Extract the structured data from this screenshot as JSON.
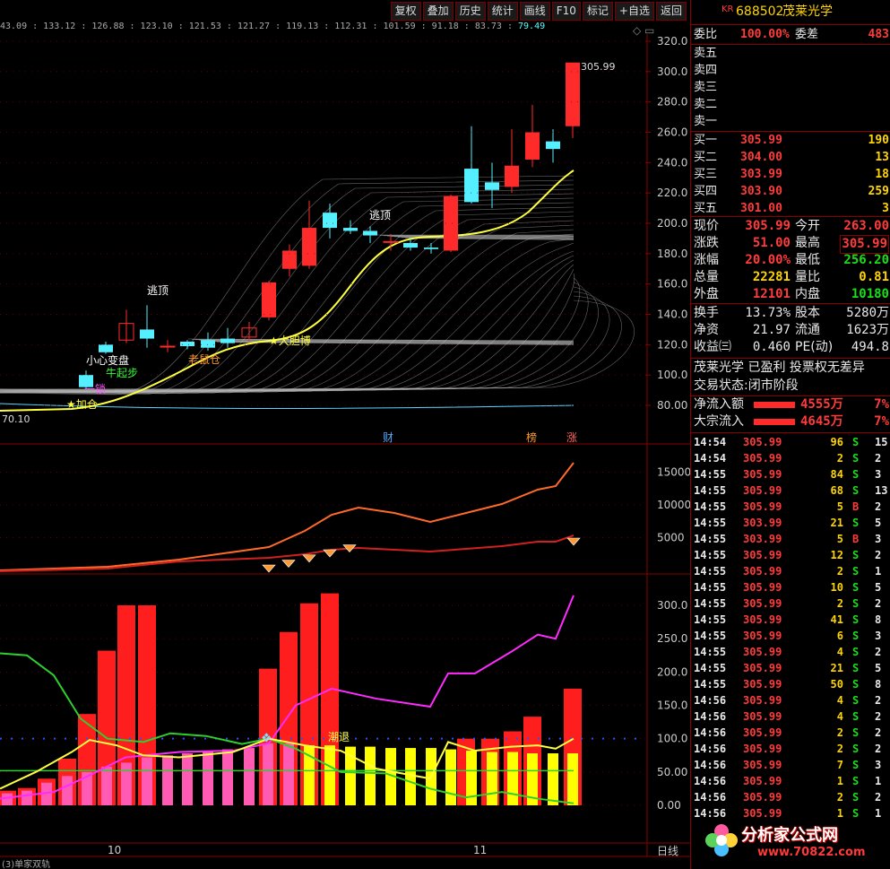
{
  "toolbar": {
    "items": [
      "复权",
      "叠加",
      "历史",
      "统计",
      "画线",
      "F10",
      "标记",
      "+自选",
      "返回"
    ]
  },
  "top_price_row": [
    "43.09",
    "133.12",
    "126.88",
    "123.10",
    "121.53",
    "121.27",
    "119.13",
    "112.31",
    "101.59",
    "91.18",
    "83.73"
  ],
  "top_price_last": "79.49",
  "main_yaxis": [
    "320.0",
    "300.0",
    "280.0",
    "260.0",
    "240.0",
    "220.0",
    "200.0",
    "180.0",
    "160.0",
    "140.0",
    "120.0",
    "100.0",
    "80.00"
  ],
  "mid_yaxis": [
    "15000",
    "10000",
    "5000"
  ],
  "low_yaxis": [
    "300.0",
    "250.0",
    "200.0",
    "150.0",
    "100.0",
    "50.00",
    "0.00"
  ],
  "xaxis": [
    "10",
    "11"
  ],
  "bottom_label": "日线",
  "bottom_tab": "(3)单家双轨",
  "chart_texts": {
    "high_mark": "305.99",
    "low_mark": "70.10",
    "escape_top_1": "逃顶",
    "escape_top_2": "逃顶",
    "careful": "小心变盘",
    "bull_start": "牛起步",
    "one_lock": "一锁",
    "add_pos": "★加仓",
    "mouse_pos": "老鼠仓",
    "bold_bet": "★大胆博",
    "fin_tag": "财",
    "list_tag": "榜",
    "up_tag": "涨",
    "retreat": "潮退"
  },
  "stock": {
    "market": "KR",
    "code": "688502",
    "name": "茂莱光学"
  },
  "commission": {
    "ratio_label": "委比",
    "ratio": "100.00%",
    "diff_label": "委差",
    "diff": "483"
  },
  "sell_levels": [
    "卖五",
    "卖四",
    "卖三",
    "卖二",
    "卖一"
  ],
  "buy_levels": [
    {
      "label": "买一",
      "price": "305.99",
      "vol": "190"
    },
    {
      "label": "买二",
      "price": "304.00",
      "vol": "13"
    },
    {
      "label": "买三",
      "price": "303.99",
      "vol": "18"
    },
    {
      "label": "买四",
      "price": "303.90",
      "vol": "259"
    },
    {
      "label": "买五",
      "price": "301.00",
      "vol": "3"
    }
  ],
  "quote": [
    {
      "l1": "现价",
      "v1": "305.99",
      "l2": "今开",
      "v2": "263.00"
    },
    {
      "l1": "涨跌",
      "v1": "51.00",
      "l2": "最高",
      "v2": "305.99"
    },
    {
      "l1": "涨幅",
      "v1": "20.00%",
      "l2": "最低",
      "v2": "256.20"
    },
    {
      "l1": "总量",
      "v1": "22281",
      "l2": "量比",
      "v2": "0.81"
    },
    {
      "l1": "外盘",
      "v1": "12101",
      "l2": "内盘",
      "v2": "10180"
    }
  ],
  "stats": [
    {
      "l1": "换手",
      "v1": "13.73%",
      "l2": "股本",
      "v2": "5280万"
    },
    {
      "l1": "净资",
      "v1": "21.97",
      "l2": "流通",
      "v2": "1623万"
    },
    {
      "l1": "收益㈢",
      "v1": "0.460",
      "l2": "PE(动)",
      "v2": "494.8"
    }
  ],
  "profile_line": "茂莱光学 已盈利 投票权无差异",
  "status_line": "交易状态:闭市阶段",
  "flows": [
    {
      "label": "净流入额",
      "value": "4555万",
      "pct": "7%"
    },
    {
      "label": "大宗流入",
      "value": "4645万",
      "pct": "7%"
    }
  ],
  "ticks": [
    {
      "t": "14:54",
      "p": "305.99",
      "v": "96",
      "s": "S",
      "n": "15"
    },
    {
      "t": "14:54",
      "p": "305.99",
      "v": "2",
      "s": "S",
      "n": "2"
    },
    {
      "t": "14:55",
      "p": "305.99",
      "v": "84",
      "s": "S",
      "n": "3"
    },
    {
      "t": "14:55",
      "p": "305.99",
      "v": "68",
      "s": "S",
      "n": "13"
    },
    {
      "t": "14:55",
      "p": "305.99",
      "v": "5",
      "s": "B",
      "n": "2"
    },
    {
      "t": "14:55",
      "p": "303.99",
      "v": "21",
      "s": "S",
      "n": "5"
    },
    {
      "t": "14:55",
      "p": "303.99",
      "v": "5",
      "s": "B",
      "n": "3"
    },
    {
      "t": "14:55",
      "p": "305.99",
      "v": "12",
      "s": "S",
      "n": "2"
    },
    {
      "t": "14:55",
      "p": "305.99",
      "v": "2",
      "s": "S",
      "n": "1"
    },
    {
      "t": "14:55",
      "p": "305.99",
      "v": "10",
      "s": "S",
      "n": "5"
    },
    {
      "t": "14:55",
      "p": "305.99",
      "v": "2",
      "s": "S",
      "n": "2"
    },
    {
      "t": "14:55",
      "p": "305.99",
      "v": "41",
      "s": "S",
      "n": "8"
    },
    {
      "t": "14:55",
      "p": "305.99",
      "v": "6",
      "s": "S",
      "n": "3"
    },
    {
      "t": "14:55",
      "p": "305.99",
      "v": "4",
      "s": "S",
      "n": "2"
    },
    {
      "t": "14:55",
      "p": "305.99",
      "v": "21",
      "s": "S",
      "n": "5"
    },
    {
      "t": "14:55",
      "p": "305.99",
      "v": "50",
      "s": "S",
      "n": "8"
    },
    {
      "t": "14:56",
      "p": "305.99",
      "v": "4",
      "s": "S",
      "n": "2"
    },
    {
      "t": "14:56",
      "p": "305.99",
      "v": "4",
      "s": "S",
      "n": "2"
    },
    {
      "t": "14:56",
      "p": "305.99",
      "v": "2",
      "s": "S",
      "n": "2"
    },
    {
      "t": "14:56",
      "p": "305.99",
      "v": "2",
      "s": "S",
      "n": "2"
    },
    {
      "t": "14:56",
      "p": "305.99",
      "v": "7",
      "s": "S",
      "n": "3"
    },
    {
      "t": "14:56",
      "p": "305.99",
      "v": "1",
      "s": "S",
      "n": "1"
    },
    {
      "t": "14:56",
      "p": "305.99",
      "v": "2",
      "s": "S",
      "n": "2"
    },
    {
      "t": "14:56",
      "p": "305.99",
      "v": "1",
      "s": "S",
      "n": "1"
    }
  ],
  "watermark": {
    "title": "分析家公式网",
    "url": "www.70822.com"
  },
  "colors": {
    "up": "#ff2b2b",
    "down": "#55f0ff",
    "accent": "#8a0000",
    "ma": "#ffff40"
  }
}
